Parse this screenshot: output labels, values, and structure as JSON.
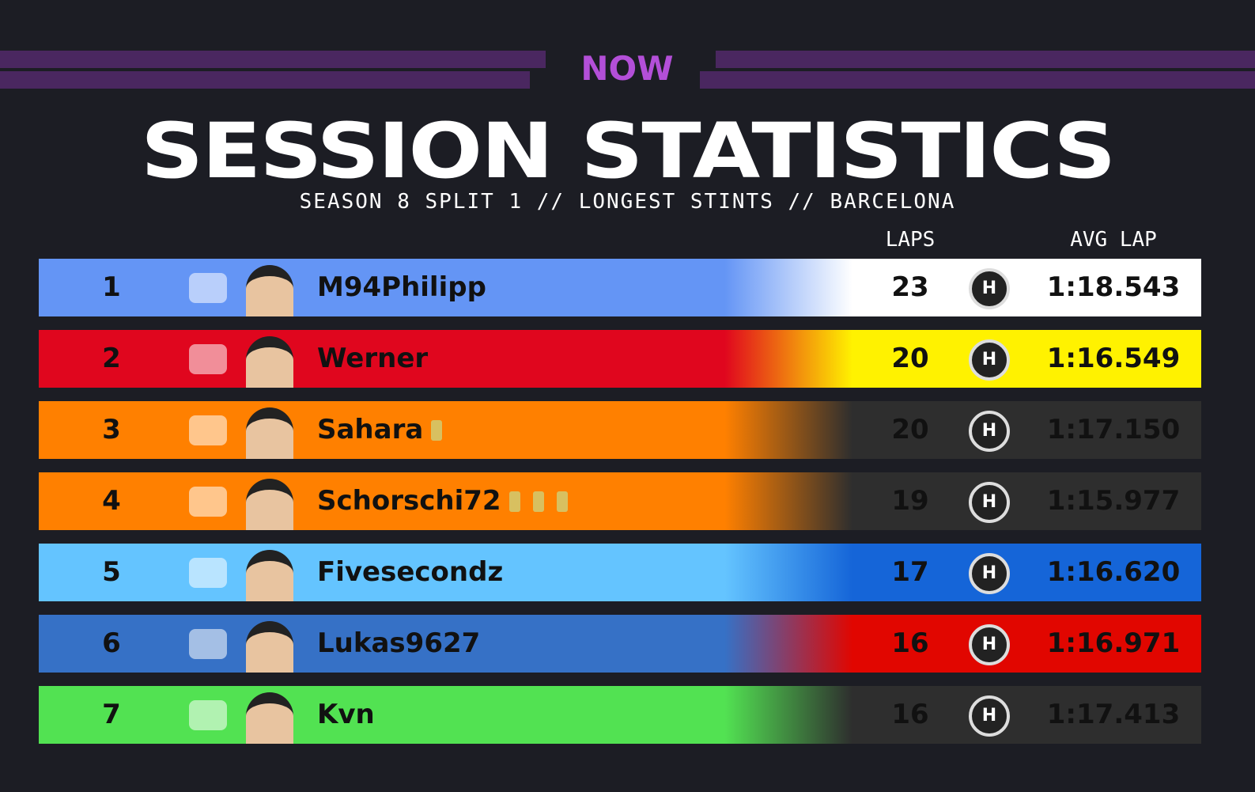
{
  "header": {
    "logo": "NOW",
    "title": "SESSION STATISTICS",
    "subtitle": "SEASON 8 SPLIT 1 // LONGEST STINTS // BARCELONA"
  },
  "columns": {
    "laps": "LAPS",
    "avg_lap": "AVG LAP"
  },
  "rows": [
    {
      "position": "1",
      "name": "M94Philipp",
      "laps": "23",
      "tyre": "H",
      "avg_lap": "1:18.543",
      "color": "#6495f5",
      "right_color": "#ffffff",
      "trophies": 0
    },
    {
      "position": "2",
      "name": "Werner",
      "laps": "20",
      "tyre": "H",
      "avg_lap": "1:16.549",
      "color": "#e0061e",
      "right_color": "#fff200",
      "trophies": 0
    },
    {
      "position": "3",
      "name": "Sahara",
      "laps": "20",
      "tyre": "H",
      "avg_lap": "1:17.150",
      "color": "#ff8000",
      "right_color": "#2e2e2e",
      "trophies": 1
    },
    {
      "position": "4",
      "name": "Schorschi72",
      "laps": "19",
      "tyre": "H",
      "avg_lap": "1:15.977",
      "color": "#ff8000",
      "right_color": "#2e2e2e",
      "trophies": 3
    },
    {
      "position": "5",
      "name": "Fivesecondz",
      "laps": "17",
      "tyre": "H",
      "avg_lap": "1:16.620",
      "color": "#64c4ff",
      "right_color": "#1565d8",
      "trophies": 0
    },
    {
      "position": "6",
      "name": "Lukas9627",
      "laps": "16",
      "tyre": "H",
      "avg_lap": "1:16.971",
      "color": "#3671c6",
      "right_color": "#e10600",
      "trophies": 0
    },
    {
      "position": "7",
      "name": "Kvn",
      "laps": "16",
      "tyre": "H",
      "avg_lap": "1:17.413",
      "color": "#52e252",
      "right_color": "#2e2e2e",
      "trophies": 0
    }
  ]
}
